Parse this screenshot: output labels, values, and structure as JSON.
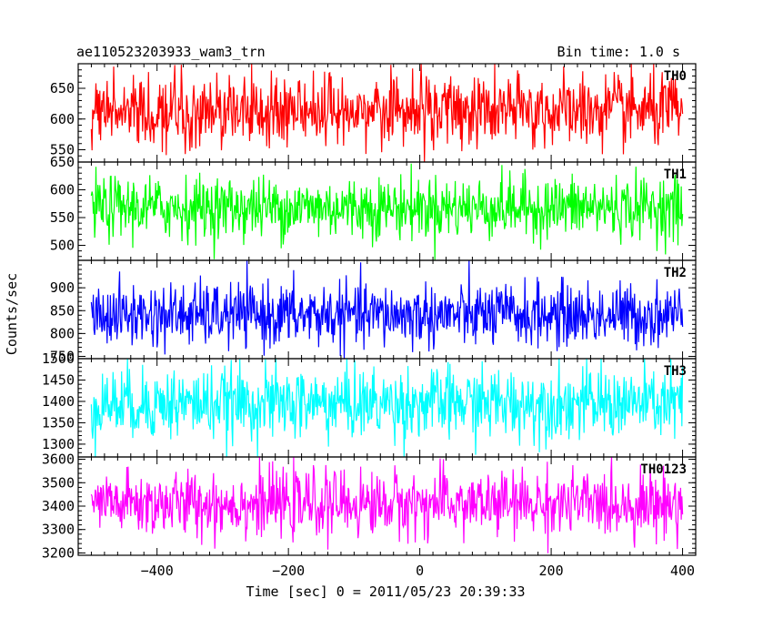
{
  "chart_data": {
    "type": "line",
    "title": "ae110523203933_wam3_trn",
    "bin_time_label": "Bin time: 1.0 s",
    "xlabel": "Time [sec] 0 = 2011/05/23 20:39:33",
    "ylabel": "Counts/sec",
    "xlim": [
      -520,
      420
    ],
    "x_range_data": [
      -500,
      400
    ],
    "x_ticks": [
      -400,
      -200,
      0,
      200,
      400
    ],
    "x_tick_labels": [
      "−400",
      "−200",
      "0",
      "200",
      "400"
    ],
    "bin_time_s": 1.0,
    "panels": [
      {
        "name": "TH0",
        "color": "#ff0000",
        "ylim": [
          530,
          690
        ],
        "y_ticks": [
          550,
          600,
          650
        ],
        "y_tick_labels": [
          "550",
          "600",
          "650"
        ],
        "mean": 613,
        "std": 30
      },
      {
        "name": "TH1",
        "color": "#00ff00",
        "ylim": [
          473,
          650
        ],
        "y_ticks": [
          500,
          550,
          600,
          650
        ],
        "y_tick_labels": [
          "500",
          "550",
          "600",
          "650"
        ],
        "mean": 568,
        "std": 28
      },
      {
        "name": "TH2",
        "color": "#0000ff",
        "ylim": [
          745,
          960
        ],
        "y_ticks": [
          750,
          800,
          850,
          900
        ],
        "y_tick_labels": [
          "750",
          "800",
          "850",
          "900"
        ],
        "mean": 840,
        "std": 35
      },
      {
        "name": "TH3",
        "color": "#00ffff",
        "ylim": [
          1270,
          1500
        ],
        "y_ticks": [
          1300,
          1350,
          1400,
          1450,
          1500
        ],
        "y_tick_labels": [
          "1300",
          "1350",
          "1400",
          "1450",
          "1500"
        ],
        "mean": 1395,
        "std": 42
      },
      {
        "name": "TH0123",
        "color": "#ff00ff",
        "ylim": [
          3190,
          3610
        ],
        "y_ticks": [
          3200,
          3300,
          3400,
          3500,
          3600
        ],
        "y_tick_labels": [
          "3200",
          "3300",
          "3400",
          "3500",
          "3600"
        ],
        "mean": 3410,
        "std": 70
      }
    ]
  }
}
